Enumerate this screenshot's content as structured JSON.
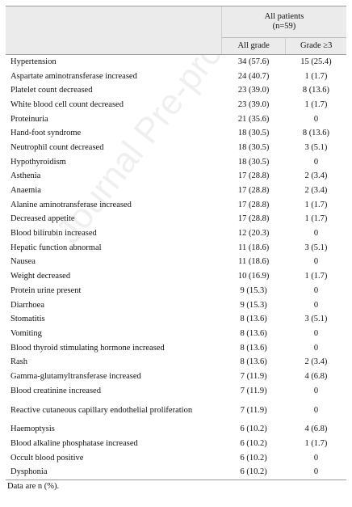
{
  "header": {
    "group_label_line1": "All patients",
    "group_label_line2": "(n=59)",
    "col_all_grade": "All grade",
    "col_grade3": "Grade ≥3"
  },
  "rows": [
    {
      "label": "Hypertension",
      "all": "34 (57.6)",
      "g3": "15 (25.4)"
    },
    {
      "label": "Aspartate aminotransferase increased",
      "all": "24 (40.7)",
      "g3": "1 (1.7)"
    },
    {
      "label": "Platelet count decreased",
      "all": "23 (39.0)",
      "g3": "8 (13.6)"
    },
    {
      "label": "White blood cell count decreased",
      "all": "23 (39.0)",
      "g3": "1 (1.7)"
    },
    {
      "label": "Proteinuria",
      "all": "21 (35.6)",
      "g3": "0"
    },
    {
      "label": "Hand-foot syndrome",
      "all": "18 (30.5)",
      "g3": "8 (13.6)"
    },
    {
      "label": "Neutrophil count decreased",
      "all": "18 (30.5)",
      "g3": "3 (5.1)"
    },
    {
      "label": "Hypothyroidism",
      "all": "18 (30.5)",
      "g3": "0"
    },
    {
      "label": "Asthenia",
      "all": "17 (28.8)",
      "g3": "2 (3.4)"
    },
    {
      "label": "Anaemia",
      "all": "17 (28.8)",
      "g3": "2 (3.4)"
    },
    {
      "label": "Alanine aminotransferase increased",
      "all": "17 (28.8)",
      "g3": "1 (1.7)"
    },
    {
      "label": "Decreased appetite",
      "all": "17 (28.8)",
      "g3": "1 (1.7)"
    },
    {
      "label": "Blood bilirubin increased",
      "all": "12 (20.3)",
      "g3": "0"
    },
    {
      "label": "Hepatic function abnormal",
      "all": "11 (18.6)",
      "g3": "3 (5.1)"
    },
    {
      "label": "Nausea",
      "all": "11 (18.6)",
      "g3": "0"
    },
    {
      "label": "Weight decreased",
      "all": "10 (16.9)",
      "g3": "1 (1.7)"
    },
    {
      "label": "Protein urine present",
      "all": "9 (15.3)",
      "g3": "0"
    },
    {
      "label": "Diarrhoea",
      "all": "9 (15.3)",
      "g3": "0"
    },
    {
      "label": "Stomatitis",
      "all": "8 (13.6)",
      "g3": "3 (5.1)"
    },
    {
      "label": "Vomiting",
      "all": "8 (13.6)",
      "g3": "0"
    },
    {
      "label": "Blood thyroid stimulating hormone increased",
      "all": "8 (13.6)",
      "g3": "0"
    },
    {
      "label": "Rash",
      "all": "8 (13.6)",
      "g3": "2 (3.4)"
    },
    {
      "label": "Gamma-glutamyltransferase increased",
      "all": "7 (11.9)",
      "g3": "4 (6.8)"
    },
    {
      "label": "Blood creatinine increased",
      "all": "7 (11.9)",
      "g3": "0"
    },
    {
      "label": "Reactive cutaneous capillary endothelial proliferation",
      "all": "7 (11.9)",
      "g3": "0",
      "tall": true
    },
    {
      "label": "Haemoptysis",
      "all": "6 (10.2)",
      "g3": "4 (6.8)"
    },
    {
      "label": "Blood alkaline phosphatase increased",
      "all": "6 (10.2)",
      "g3": "1 (1.7)"
    },
    {
      "label": "Occult blood positive",
      "all": "6 (10.2)",
      "g3": "0"
    },
    {
      "label": "Dysphonia",
      "all": "6 (10.2)",
      "g3": "0"
    }
  ],
  "footnote": "Data are n (%).",
  "watermark": "Journal Pre-proof"
}
